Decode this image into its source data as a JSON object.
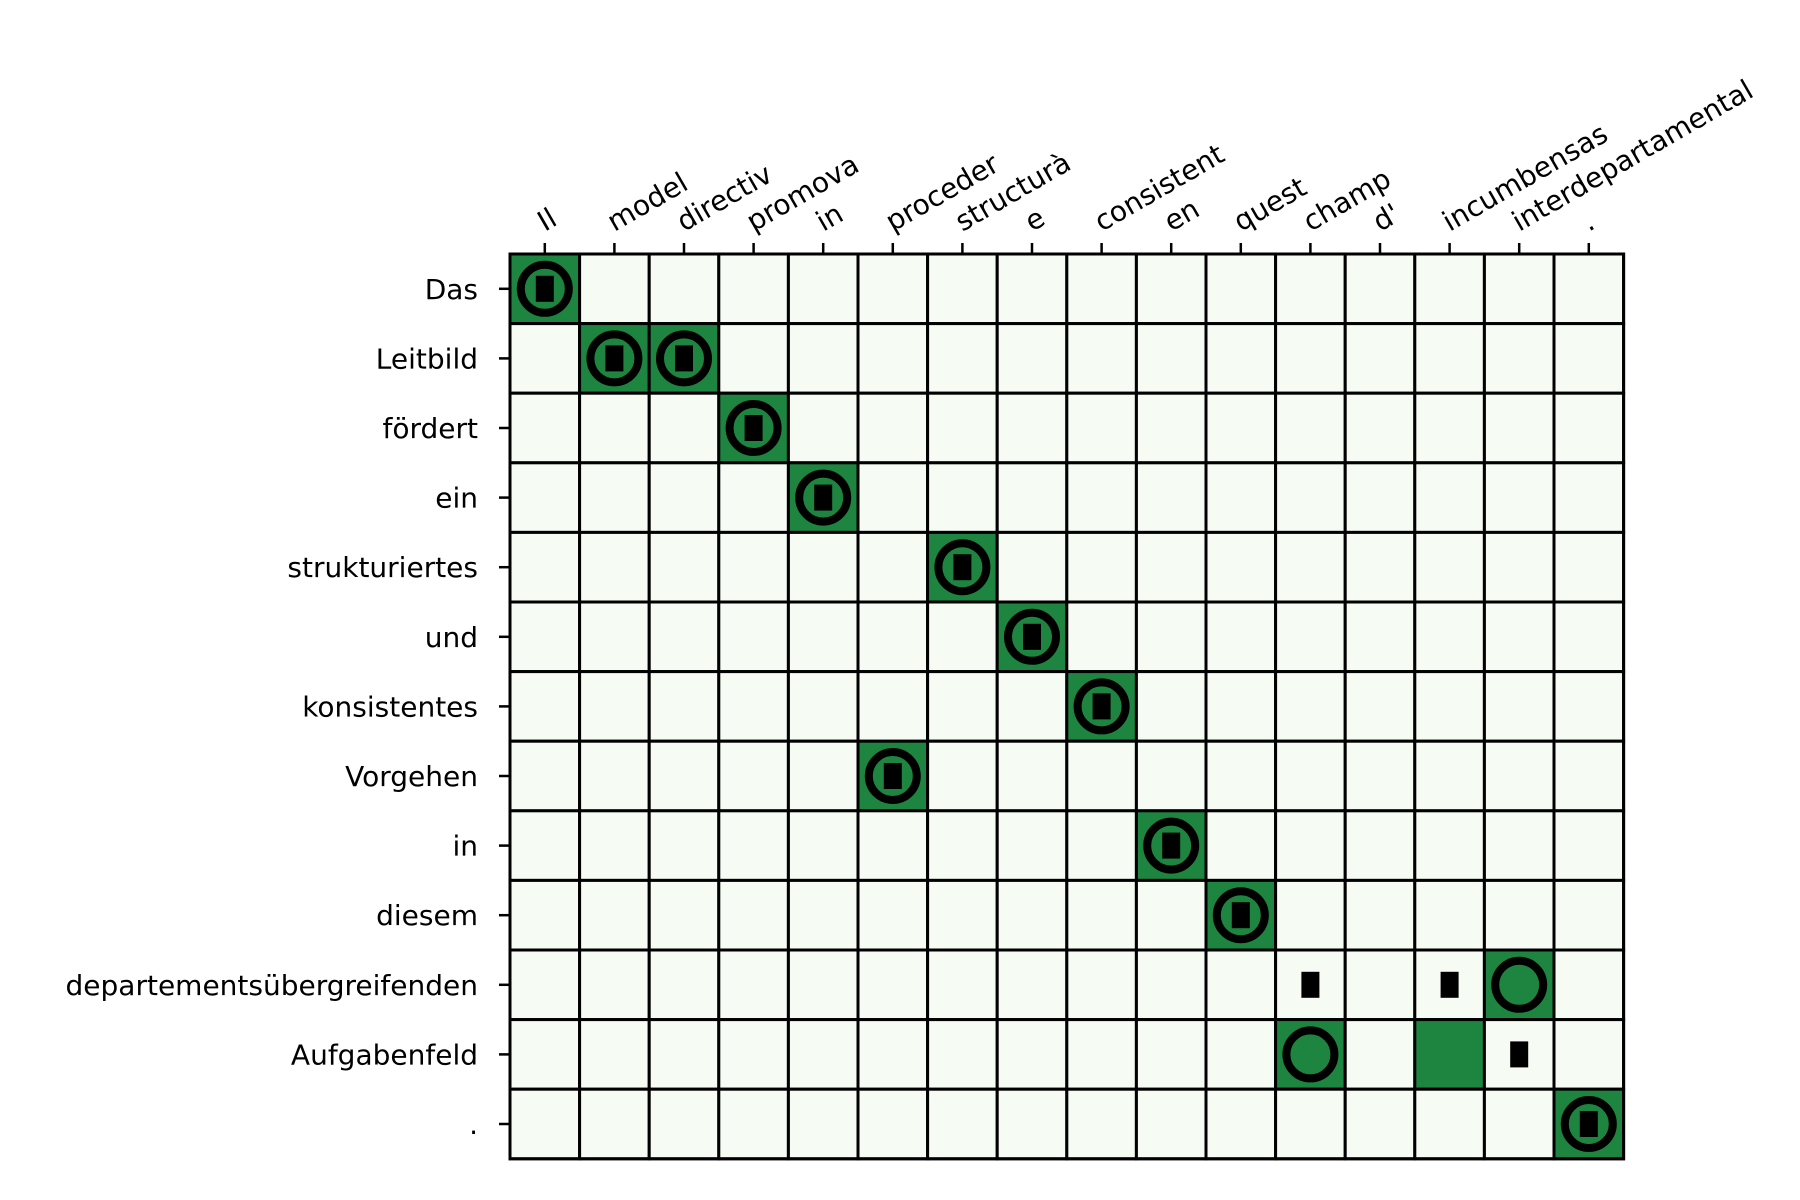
{
  "chart_data": {
    "type": "heatmap",
    "title": "",
    "xlabel": "",
    "ylabel": "",
    "grid": true,
    "x_labels": [
      "Il",
      "model",
      "directiv",
      "promova",
      "in",
      "proceder",
      "structurà",
      "e",
      "consistent",
      "en",
      "quest",
      "champ",
      "d'",
      "incumbensas",
      "interdepartamental",
      "."
    ],
    "y_labels": [
      "Das",
      "Leitbild",
      "fördert",
      "ein",
      "strukturiertes",
      "und",
      "konsistentes",
      "Vorgehen",
      "in",
      "diesem",
      "departementsübergreifenden",
      "Aufgabenfeld",
      "."
    ],
    "filled_cells": [
      [
        0,
        0
      ],
      [
        1,
        1
      ],
      [
        1,
        2
      ],
      [
        2,
        3
      ],
      [
        3,
        4
      ],
      [
        4,
        6
      ],
      [
        5,
        7
      ],
      [
        6,
        8
      ],
      [
        7,
        5
      ],
      [
        8,
        9
      ],
      [
        9,
        10
      ],
      [
        10,
        14
      ],
      [
        11,
        11
      ],
      [
        11,
        13
      ],
      [
        12,
        15
      ]
    ],
    "circle_marks": [
      [
        0,
        0
      ],
      [
        1,
        1
      ],
      [
        1,
        2
      ],
      [
        2,
        3
      ],
      [
        3,
        4
      ],
      [
        4,
        6
      ],
      [
        5,
        7
      ],
      [
        6,
        8
      ],
      [
        7,
        5
      ],
      [
        8,
        9
      ],
      [
        9,
        10
      ],
      [
        10,
        14
      ],
      [
        11,
        11
      ],
      [
        12,
        15
      ]
    ],
    "square_marks": [
      [
        0,
        0
      ],
      [
        1,
        1
      ],
      [
        1,
        2
      ],
      [
        2,
        3
      ],
      [
        3,
        4
      ],
      [
        4,
        6
      ],
      [
        5,
        7
      ],
      [
        6,
        8
      ],
      [
        7,
        5
      ],
      [
        8,
        9
      ],
      [
        9,
        10
      ],
      [
        10,
        11
      ],
      [
        10,
        13
      ],
      [
        11,
        14
      ],
      [
        12,
        15
      ]
    ],
    "colors": {
      "filled": "#1e8540",
      "empty": "#f6fbf4",
      "grid": "#000000",
      "marker": "#000000"
    }
  }
}
